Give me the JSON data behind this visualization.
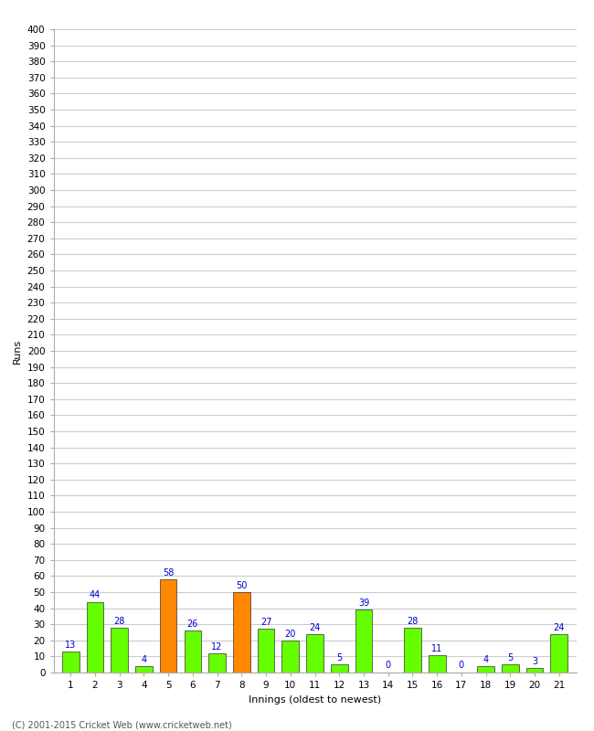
{
  "xlabel": "Innings (oldest to newest)",
  "ylabel": "Runs",
  "categories": [
    1,
    2,
    3,
    4,
    5,
    6,
    7,
    8,
    9,
    10,
    11,
    12,
    13,
    14,
    15,
    16,
    17,
    18,
    19,
    20,
    21
  ],
  "values": [
    13,
    44,
    28,
    4,
    58,
    26,
    12,
    50,
    27,
    20,
    24,
    5,
    39,
    0,
    28,
    11,
    0,
    4,
    5,
    3,
    24
  ],
  "bar_colors": [
    "#66ff00",
    "#66ff00",
    "#66ff00",
    "#66ff00",
    "#ff8800",
    "#66ff00",
    "#66ff00",
    "#ff8800",
    "#66ff00",
    "#66ff00",
    "#66ff00",
    "#66ff00",
    "#66ff00",
    "#66ff00",
    "#66ff00",
    "#66ff00",
    "#66ff00",
    "#66ff00",
    "#66ff00",
    "#66ff00",
    "#66ff00"
  ],
  "ylim": [
    0,
    400
  ],
  "yticks": [
    0,
    10,
    20,
    30,
    40,
    50,
    60,
    70,
    80,
    90,
    100,
    110,
    120,
    130,
    140,
    150,
    160,
    170,
    180,
    190,
    200,
    210,
    220,
    230,
    240,
    250,
    260,
    270,
    280,
    290,
    300,
    310,
    320,
    330,
    340,
    350,
    360,
    370,
    380,
    390,
    400
  ],
  "label_color": "#0000cc",
  "grid_color": "#cccccc",
  "bg_color": "#ffffff",
  "footer": "(C) 2001-2015 Cricket Web (www.cricketweb.net)",
  "bar_edge_color": "#333333",
  "label_fontsize": 7,
  "axis_fontsize": 7.5,
  "ylabel_fontsize": 8
}
